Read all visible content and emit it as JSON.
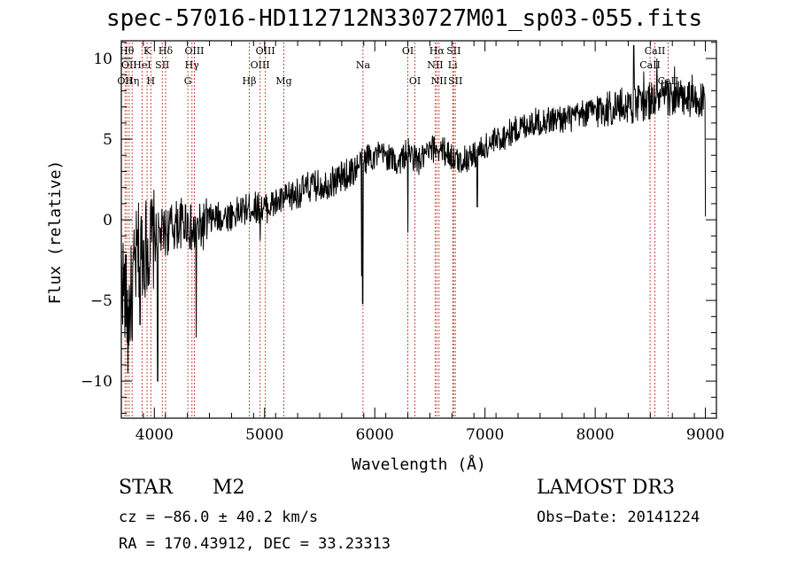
{
  "chart_data": {
    "type": "line",
    "title": "spec-57016-HD112712N330727M01_sp03-055.fits",
    "xlabel": "Wavelength (Å)",
    "ylabel": "Flux (relative)",
    "xlim": [
      3700,
      9100
    ],
    "ylim": [
      -12.3,
      11.1
    ],
    "xticks": [
      4000,
      5000,
      6000,
      7000,
      8000,
      9000
    ],
    "yticks": [
      -10,
      -5,
      0,
      5,
      10
    ],
    "xtick_labels": [
      "4000",
      "5000",
      "6000",
      "7000",
      "8000",
      "9000"
    ],
    "ytick_labels": [
      "−10",
      "−5",
      "0",
      "5",
      "10"
    ],
    "spectrum_anchors": [
      [
        3700,
        -3
      ],
      [
        3760,
        -6
      ],
      [
        3850,
        -2
      ],
      [
        3950,
        -1.5
      ],
      [
        4050,
        -1
      ],
      [
        4150,
        -0.5
      ],
      [
        4300,
        0
      ],
      [
        4350,
        -1
      ],
      [
        4500,
        0
      ],
      [
        4700,
        0.3
      ],
      [
        4900,
        0.8
      ],
      [
        5000,
        0.7
      ],
      [
        5200,
        1.3
      ],
      [
        5400,
        2
      ],
      [
        5600,
        2.3
      ],
      [
        5800,
        3
      ],
      [
        5950,
        4
      ],
      [
        6100,
        4
      ],
      [
        6200,
        3.5
      ],
      [
        6300,
        4.2
      ],
      [
        6400,
        3.6
      ],
      [
        6550,
        4.5
      ],
      [
        6650,
        4.2
      ],
      [
        6750,
        3.6
      ],
      [
        6900,
        4
      ],
      [
        7000,
        4.5
      ],
      [
        7200,
        5.3
      ],
      [
        7400,
        6
      ],
      [
        7600,
        6.2
      ],
      [
        7800,
        6.3
      ],
      [
        8000,
        6.8
      ],
      [
        8200,
        7
      ],
      [
        8400,
        7.2
      ],
      [
        8600,
        7.6
      ],
      [
        8800,
        7.5
      ],
      [
        9000,
        7.2
      ]
    ],
    "spectrum_features": [
      {
        "x": 5890,
        "y": -5.2
      },
      {
        "x": 3760,
        "y": -9.5
      },
      {
        "x": 3800,
        "y": -7.5
      },
      {
        "x": 3870,
        "y": -6.5
      },
      {
        "x": 4030,
        "y": -10
      },
      {
        "x": 4380,
        "y": -7.3
      },
      {
        "x": 4960,
        "y": -1.3
      },
      {
        "x": 5880,
        "y": -3.5
      },
      {
        "x": 6300,
        "y": -0.8
      },
      {
        "x": 6930,
        "y": 0.8
      },
      {
        "x": 8350,
        "y": 10.8
      },
      {
        "x": 8440,
        "y": 9.2
      },
      {
        "x": 8560,
        "y": 10
      },
      {
        "x": 8720,
        "y": 9.5
      },
      {
        "x": 8880,
        "y": 9
      },
      {
        "x": 8990,
        "y": 7.8
      },
      {
        "x": 9000,
        "y": 0.2
      }
    ],
    "lines": [
      {
        "x": 3734,
        "label": "OII",
        "row": 2
      },
      {
        "x": 3750,
        "label": "Hθ",
        "row": 0
      },
      {
        "x": 3771,
        "label": "OII",
        "row": 1
      },
      {
        "x": 3798,
        "label": "Hη",
        "row": 2
      },
      {
        "x": 3889,
        "label": "HeI",
        "row": 1
      },
      {
        "x": 3934,
        "label": "K",
        "row": 0
      },
      {
        "x": 3968,
        "label": "H",
        "row": 2
      },
      {
        "x": 4072,
        "label": "SII",
        "row": 1
      },
      {
        "x": 4102,
        "label": "Hδ",
        "row": 0
      },
      {
        "x": 4304,
        "label": "G",
        "row": 2
      },
      {
        "x": 4341,
        "label": "Hγ",
        "row": 1
      },
      {
        "x": 4363,
        "label": "OIII",
        "row": 0
      },
      {
        "x": 4861,
        "label": "Hβ",
        "row": 2
      },
      {
        "x": 4959,
        "label": "OIII",
        "row": 1
      },
      {
        "x": 5007,
        "label": "OIII",
        "row": 0
      },
      {
        "x": 5175,
        "label": "Mg",
        "row": 2
      },
      {
        "x": 5893,
        "label": "Na",
        "row": 1
      },
      {
        "x": 6300,
        "label": "OI",
        "row": 0
      },
      {
        "x": 6364,
        "label": "OI",
        "row": 2
      },
      {
        "x": 6548,
        "label": "NII",
        "row": 1
      },
      {
        "x": 6563,
        "label": "Hα",
        "row": 0
      },
      {
        "x": 6583,
        "label": "NII",
        "row": 2
      },
      {
        "x": 6707,
        "label": "Li",
        "row": 1
      },
      {
        "x": 6716,
        "label": "SII",
        "row": 0
      },
      {
        "x": 6731,
        "label": "SII",
        "row": 2
      },
      {
        "x": 8498,
        "label": "CaII",
        "row": 1
      },
      {
        "x": 8542,
        "label": "CaII",
        "row": 0
      },
      {
        "x": 8662,
        "label": "CaII",
        "row": 2
      }
    ]
  },
  "info": {
    "object_class": "STAR",
    "subclass": "M2",
    "survey": "LAMOST DR3",
    "cz": "cz = −86.0 ± 40.2 km/s",
    "obs_date": "Obs−Date: 20141224",
    "radec": "RA = 170.43912, DEC =  33.23313"
  },
  "colors": {
    "line_marker": "#c0392b",
    "spectrum": "#000000",
    "axes": "#000000"
  }
}
